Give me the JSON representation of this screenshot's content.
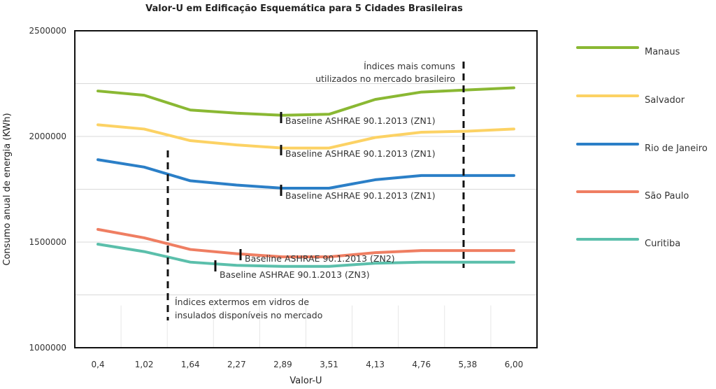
{
  "chart_data": {
    "type": "line",
    "title": "Valor-U em Edificação Esquemática para 5 Cidades Brasileiras",
    "xlabel": "Valor-U",
    "ylabel": "Consumo anual de energia (KWh)",
    "categories": [
      "0,4",
      "1,02",
      "1,64",
      "2,27",
      "2,89",
      "3,51",
      "4,13",
      "4,76",
      "5,38",
      "6,00"
    ],
    "ylim": [
      1000000,
      2500000
    ],
    "yticks": [
      "1000000",
      "1500000",
      "2000000",
      "2500000"
    ],
    "grid": "horizontal",
    "legend_position": "right",
    "series": [
      {
        "name": "Manaus",
        "color": "#8ab833",
        "values": [
          2215000,
          2195000,
          2125000,
          2110000,
          2100000,
          2105000,
          2175000,
          2210000,
          2220000,
          2230000
        ]
      },
      {
        "name": "Salvador",
        "color": "#fcd264",
        "values": [
          2055000,
          2035000,
          1980000,
          1960000,
          1945000,
          1945000,
          1995000,
          2020000,
          2025000,
          2035000
        ]
      },
      {
        "name": "Rio de Janeiro",
        "color": "#2b7fc7",
        "values": [
          1890000,
          1855000,
          1790000,
          1770000,
          1755000,
          1755000,
          1795000,
          1815000,
          1815000,
          1815000
        ]
      },
      {
        "name": "São Paulo",
        "color": "#ef7e62",
        "values": [
          1560000,
          1520000,
          1465000,
          1445000,
          1430000,
          1430000,
          1450000,
          1460000,
          1460000,
          1460000
        ]
      },
      {
        "name": "Curitiba",
        "color": "#5bbfab",
        "values": [
          1490000,
          1455000,
          1405000,
          1390000,
          1385000,
          1385000,
          1400000,
          1405000,
          1405000,
          1405000
        ]
      }
    ],
    "annotations": [
      {
        "lines": [
          "Índices mais comuns",
          "utilizados no mercado brasileiro"
        ]
      },
      {
        "lines": [
          "Baseline ASHRAE 90.1.2013 (ZN1)"
        ]
      },
      {
        "lines": [
          "Baseline ASHRAE 90.1.2013 (ZN1)"
        ]
      },
      {
        "lines": [
          "Baseline ASHRAE 90.1.2013 (ZN1)"
        ]
      },
      {
        "lines": [
          "Baseline ASHRAE 90.1.2013 (ZN2)"
        ]
      },
      {
        "lines": [
          "Baseline ASHRAE 90.1.2013 (ZN3)"
        ]
      },
      {
        "lines": [
          "Índices extermos em vidros de",
          "insulados disponíveis no mercado"
        ]
      }
    ]
  }
}
